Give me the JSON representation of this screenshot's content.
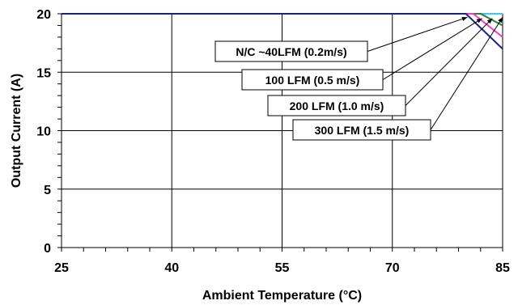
{
  "chart_data": {
    "type": "line",
    "xlabel": "Ambient Temperature (°C)",
    "ylabel": "Output Current (A)",
    "xlim": [
      25,
      85
    ],
    "ylim": [
      0,
      20
    ],
    "x_ticks": [
      25,
      40,
      55,
      70,
      85
    ],
    "y_ticks": [
      0,
      5,
      10,
      15,
      20
    ],
    "grid": true,
    "series": [
      {
        "name": "N/C ~40LFM (0.2m/s)",
        "color": "#1a237e",
        "x": [
          25,
          80,
          85
        ],
        "y": [
          20,
          20,
          17
        ]
      },
      {
        "name": "100 LFM (0.5 m/s)",
        "color": "#ff33cc",
        "x": [
          25,
          81,
          85
        ],
        "y": [
          20,
          20,
          18
        ]
      },
      {
        "name": "200 LFM (1.0 m/s)",
        "color": "#2e7d32",
        "x": [
          25,
          82,
          85
        ],
        "y": [
          20,
          20,
          19
        ]
      },
      {
        "name": "300 LFM (1.5 m/s)",
        "color": "#33ccff",
        "x": [
          25,
          85
        ],
        "y": [
          20,
          20
        ]
      }
    ],
    "annotations": [
      {
        "text": "N/C ~40LFM (0.2m/s)",
        "target": [
          80.2,
          19.7
        ]
      },
      {
        "text": "100 LFM (0.5 m/s)",
        "target": [
          82.2,
          19.6
        ]
      },
      {
        "text": "200 LFM (1.0 m/s)",
        "target": [
          83.6,
          19.6
        ]
      },
      {
        "text": "300 LFM (1.5 m/s)",
        "target": [
          85.0,
          19.7
        ]
      }
    ]
  }
}
